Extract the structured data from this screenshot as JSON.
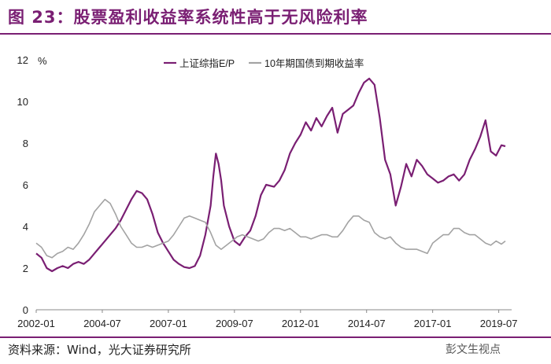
{
  "header": {
    "title": "图 23：股票盈利收益率系统性高于无风险利率"
  },
  "footer": {
    "source": "资料来源：Wind，光大证券研究所",
    "watermark": "彭文生视点"
  },
  "chart_data": {
    "type": "line",
    "title": "",
    "ylabel": "%",
    "ylim": [
      0,
      12
    ],
    "yticks": [
      0,
      2,
      4,
      6,
      8,
      10,
      12
    ],
    "xlim": [
      2002.0,
      2019.75
    ],
    "xtick_labels": [
      "2002-01",
      "2004-07",
      "2007-01",
      "2009-07",
      "2012-01",
      "2014-07",
      "2017-01",
      "2019-07"
    ],
    "xtick_values": [
      2002.0,
      2004.5,
      2007.0,
      2009.5,
      2012.0,
      2014.5,
      2017.0,
      2019.5
    ],
    "grid": false,
    "legend_position": "top",
    "series": [
      {
        "name": "上证综指E/P",
        "color": "#7a1f73",
        "points": [
          [
            2002.0,
            2.7
          ],
          [
            2002.2,
            2.5
          ],
          [
            2002.4,
            2.0
          ],
          [
            2002.6,
            1.85
          ],
          [
            2002.8,
            2.0
          ],
          [
            2003.0,
            2.1
          ],
          [
            2003.2,
            2.0
          ],
          [
            2003.4,
            2.2
          ],
          [
            2003.6,
            2.3
          ],
          [
            2003.8,
            2.2
          ],
          [
            2004.0,
            2.4
          ],
          [
            2004.2,
            2.7
          ],
          [
            2004.4,
            3.0
          ],
          [
            2004.6,
            3.3
          ],
          [
            2004.8,
            3.6
          ],
          [
            2005.0,
            3.9
          ],
          [
            2005.2,
            4.3
          ],
          [
            2005.4,
            4.8
          ],
          [
            2005.6,
            5.3
          ],
          [
            2005.8,
            5.7
          ],
          [
            2006.0,
            5.6
          ],
          [
            2006.2,
            5.3
          ],
          [
            2006.4,
            4.6
          ],
          [
            2006.6,
            3.7
          ],
          [
            2006.8,
            3.2
          ],
          [
            2007.0,
            2.8
          ],
          [
            2007.2,
            2.4
          ],
          [
            2007.4,
            2.2
          ],
          [
            2007.6,
            2.05
          ],
          [
            2007.8,
            2.0
          ],
          [
            2008.0,
            2.1
          ],
          [
            2008.2,
            2.6
          ],
          [
            2008.4,
            3.6
          ],
          [
            2008.6,
            5.0
          ],
          [
            2008.7,
            6.4
          ],
          [
            2008.8,
            7.5
          ],
          [
            2008.9,
            7.0
          ],
          [
            2009.0,
            6.2
          ],
          [
            2009.1,
            5.0
          ],
          [
            2009.3,
            4.0
          ],
          [
            2009.5,
            3.3
          ],
          [
            2009.7,
            3.1
          ],
          [
            2009.9,
            3.5
          ],
          [
            2010.1,
            3.8
          ],
          [
            2010.3,
            4.5
          ],
          [
            2010.5,
            5.5
          ],
          [
            2010.7,
            6.0
          ],
          [
            2011.0,
            5.9
          ],
          [
            2011.2,
            6.2
          ],
          [
            2011.4,
            6.7
          ],
          [
            2011.6,
            7.5
          ],
          [
            2011.8,
            8.0
          ],
          [
            2012.0,
            8.4
          ],
          [
            2012.2,
            9.0
          ],
          [
            2012.4,
            8.6
          ],
          [
            2012.6,
            9.2
          ],
          [
            2012.8,
            8.8
          ],
          [
            2013.0,
            9.3
          ],
          [
            2013.2,
            9.7
          ],
          [
            2013.4,
            8.5
          ],
          [
            2013.6,
            9.4
          ],
          [
            2013.8,
            9.6
          ],
          [
            2014.0,
            9.8
          ],
          [
            2014.2,
            10.4
          ],
          [
            2014.4,
            10.9
          ],
          [
            2014.6,
            11.1
          ],
          [
            2014.8,
            10.8
          ],
          [
            2015.0,
            9.2
          ],
          [
            2015.2,
            7.2
          ],
          [
            2015.4,
            6.5
          ],
          [
            2015.6,
            5.0
          ],
          [
            2015.8,
            5.9
          ],
          [
            2016.0,
            7.0
          ],
          [
            2016.2,
            6.4
          ],
          [
            2016.4,
            7.2
          ],
          [
            2016.6,
            6.9
          ],
          [
            2016.8,
            6.5
          ],
          [
            2017.0,
            6.3
          ],
          [
            2017.2,
            6.1
          ],
          [
            2017.4,
            6.2
          ],
          [
            2017.6,
            6.4
          ],
          [
            2017.8,
            6.5
          ],
          [
            2018.0,
            6.2
          ],
          [
            2018.2,
            6.5
          ],
          [
            2018.4,
            7.2
          ],
          [
            2018.6,
            7.7
          ],
          [
            2018.8,
            8.3
          ],
          [
            2019.0,
            9.1
          ],
          [
            2019.2,
            7.6
          ],
          [
            2019.4,
            7.4
          ],
          [
            2019.6,
            7.9
          ],
          [
            2019.75,
            7.85
          ]
        ]
      },
      {
        "name": "10年期国债到期收益率",
        "color": "#a3a3a3",
        "points": [
          [
            2002.0,
            3.2
          ],
          [
            2002.2,
            3.0
          ],
          [
            2002.4,
            2.6
          ],
          [
            2002.6,
            2.5
          ],
          [
            2002.8,
            2.7
          ],
          [
            2003.0,
            2.8
          ],
          [
            2003.2,
            3.0
          ],
          [
            2003.4,
            2.9
          ],
          [
            2003.6,
            3.2
          ],
          [
            2003.8,
            3.6
          ],
          [
            2004.0,
            4.1
          ],
          [
            2004.2,
            4.7
          ],
          [
            2004.4,
            5.0
          ],
          [
            2004.6,
            5.3
          ],
          [
            2004.8,
            5.1
          ],
          [
            2005.0,
            4.6
          ],
          [
            2005.2,
            4.0
          ],
          [
            2005.4,
            3.6
          ],
          [
            2005.6,
            3.2
          ],
          [
            2005.8,
            3.0
          ],
          [
            2006.0,
            3.0
          ],
          [
            2006.2,
            3.1
          ],
          [
            2006.4,
            3.0
          ],
          [
            2006.6,
            3.1
          ],
          [
            2006.8,
            3.2
          ],
          [
            2007.0,
            3.3
          ],
          [
            2007.2,
            3.6
          ],
          [
            2007.4,
            4.0
          ],
          [
            2007.6,
            4.4
          ],
          [
            2007.8,
            4.5
          ],
          [
            2008.0,
            4.4
          ],
          [
            2008.2,
            4.3
          ],
          [
            2008.4,
            4.2
          ],
          [
            2008.6,
            3.7
          ],
          [
            2008.8,
            3.1
          ],
          [
            2009.0,
            2.9
          ],
          [
            2009.2,
            3.1
          ],
          [
            2009.4,
            3.3
          ],
          [
            2009.6,
            3.5
          ],
          [
            2009.8,
            3.6
          ],
          [
            2010.0,
            3.5
          ],
          [
            2010.2,
            3.4
          ],
          [
            2010.4,
            3.3
          ],
          [
            2010.6,
            3.4
          ],
          [
            2010.8,
            3.7
          ],
          [
            2011.0,
            3.9
          ],
          [
            2011.2,
            3.9
          ],
          [
            2011.4,
            3.8
          ],
          [
            2011.6,
            3.9
          ],
          [
            2011.8,
            3.7
          ],
          [
            2012.0,
            3.5
          ],
          [
            2012.2,
            3.5
          ],
          [
            2012.4,
            3.4
          ],
          [
            2012.6,
            3.5
          ],
          [
            2012.8,
            3.6
          ],
          [
            2013.0,
            3.6
          ],
          [
            2013.2,
            3.5
          ],
          [
            2013.4,
            3.5
          ],
          [
            2013.6,
            3.8
          ],
          [
            2013.8,
            4.2
          ],
          [
            2014.0,
            4.5
          ],
          [
            2014.2,
            4.5
          ],
          [
            2014.4,
            4.3
          ],
          [
            2014.6,
            4.2
          ],
          [
            2014.8,
            3.7
          ],
          [
            2015.0,
            3.5
          ],
          [
            2015.2,
            3.4
          ],
          [
            2015.4,
            3.5
          ],
          [
            2015.6,
            3.2
          ],
          [
            2015.8,
            3.0
          ],
          [
            2016.0,
            2.9
          ],
          [
            2016.2,
            2.9
          ],
          [
            2016.4,
            2.9
          ],
          [
            2016.6,
            2.8
          ],
          [
            2016.8,
            2.7
          ],
          [
            2017.0,
            3.2
          ],
          [
            2017.2,
            3.4
          ],
          [
            2017.4,
            3.6
          ],
          [
            2017.6,
            3.6
          ],
          [
            2017.8,
            3.9
          ],
          [
            2018.0,
            3.9
          ],
          [
            2018.2,
            3.7
          ],
          [
            2018.4,
            3.6
          ],
          [
            2018.6,
            3.6
          ],
          [
            2018.8,
            3.4
          ],
          [
            2019.0,
            3.2
          ],
          [
            2019.2,
            3.1
          ],
          [
            2019.4,
            3.3
          ],
          [
            2019.6,
            3.15
          ],
          [
            2019.75,
            3.3
          ]
        ]
      }
    ]
  }
}
